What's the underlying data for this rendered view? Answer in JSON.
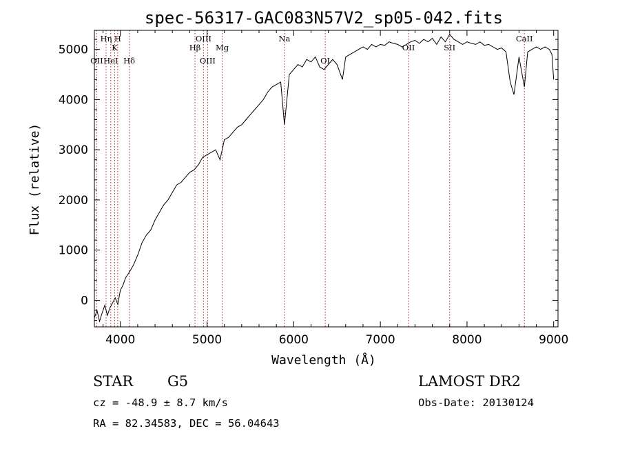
{
  "chart_data": {
    "type": "line",
    "title": "spec-56317-GAC083N57V2_sp05-042.fits",
    "xlabel": "Wavelength (Å)",
    "ylabel": "Flux (relative)",
    "xlim": [
      3700,
      9050
    ],
    "ylim": [
      -530,
      5380
    ],
    "xticks": [
      4000,
      5000,
      6000,
      7000,
      8000,
      9000
    ],
    "yticks": [
      0,
      1000,
      2000,
      3000,
      4000,
      5000
    ],
    "grid": false,
    "series": [
      {
        "x": [
          3700,
          3730,
          3760,
          3790,
          3820,
          3850,
          3880,
          3910,
          3940,
          3970,
          4000,
          4030,
          4060,
          4100,
          4150,
          4200,
          4250,
          4300,
          4350,
          4400,
          4450,
          4500,
          4550,
          4600,
          4650,
          4700,
          4750,
          4800,
          4850,
          4900,
          4950,
          5000,
          5050,
          5100,
          5150,
          5200,
          5250,
          5300,
          5350,
          5400,
          5450,
          5500,
          5550,
          5600,
          5650,
          5700,
          5750,
          5800,
          5850,
          5893,
          5950,
          6000,
          6050,
          6100,
          6150,
          6200,
          6250,
          6300,
          6350,
          6400,
          6450,
          6500,
          6563,
          6600,
          6650,
          6700,
          6750,
          6800,
          6850,
          6900,
          6950,
          7000,
          7050,
          7100,
          7150,
          7200,
          7250,
          7300,
          7350,
          7400,
          7450,
          7500,
          7550,
          7600,
          7650,
          7700,
          7750,
          7800,
          7850,
          7900,
          7950,
          8000,
          8050,
          8100,
          8150,
          8200,
          8250,
          8300,
          8350,
          8400,
          8450,
          8498,
          8542,
          8600,
          8662,
          8700,
          8750,
          8800,
          8850,
          8900,
          8950,
          8980,
          9000
        ],
        "values": [
          -350,
          -200,
          -420,
          -250,
          -100,
          -300,
          -150,
          -50,
          50,
          -80,
          200,
          300,
          450,
          550,
          700,
          900,
          1150,
          1300,
          1400,
          1600,
          1750,
          1900,
          2000,
          2150,
          2300,
          2350,
          2450,
          2550,
          2600,
          2700,
          2850,
          2900,
          2950,
          3000,
          2800,
          3200,
          3250,
          3350,
          3450,
          3500,
          3600,
          3700,
          3800,
          3900,
          4000,
          4150,
          4250,
          4300,
          4350,
          3500,
          4500,
          4600,
          4700,
          4650,
          4800,
          4750,
          4850,
          4650,
          4600,
          4700,
          4800,
          4700,
          4400,
          4850,
          4900,
          4950,
          5000,
          5050,
          5000,
          5100,
          5050,
          5100,
          5080,
          5150,
          5120,
          5100,
          5050,
          5100,
          5150,
          5180,
          5120,
          5200,
          5150,
          5220,
          5100,
          5250,
          5150,
          5300,
          5200,
          5150,
          5100,
          5150,
          5120,
          5100,
          5150,
          5080,
          5100,
          5050,
          5000,
          5030,
          4950,
          4350,
          4100,
          4850,
          4250,
          4950,
          5000,
          5050,
          5000,
          5050,
          5000,
          4900,
          4400
        ]
      }
    ],
    "line_markers": [
      {
        "label": "OII",
        "x": 3727
      },
      {
        "label": "Hη",
        "x": 3835
      },
      {
        "label": "HeI",
        "x": 3889
      },
      {
        "label": "K",
        "x": 3934
      },
      {
        "label": "H",
        "x": 3969
      },
      {
        "label": "Hδ",
        "x": 4102
      },
      {
        "label": "Hβ",
        "x": 4861
      },
      {
        "label": "OIII",
        "x": 4959
      },
      {
        "label": "OIII",
        "x": 5007
      },
      {
        "label": "Mg",
        "x": 5175
      },
      {
        "label": "Na",
        "x": 5893
      },
      {
        "label": "OI",
        "x": 6364
      },
      {
        "label": "OII",
        "x": 7325
      },
      {
        "label": "SII",
        "x": 7800
      },
      {
        "label": "CaII",
        "x": 8662
      }
    ]
  },
  "info": {
    "object_class": "STAR",
    "subclass": "G5",
    "survey": "LAMOST DR2",
    "redshift": "cz = -48.9 ± 8.7 km/s",
    "obs_date": "Obs-Date: 20130124",
    "coords": "RA =  82.34583, DEC =  56.04643"
  },
  "colors": {
    "spectrum": "#000000",
    "marker_line": "#b22222",
    "axes": "#000000"
  }
}
